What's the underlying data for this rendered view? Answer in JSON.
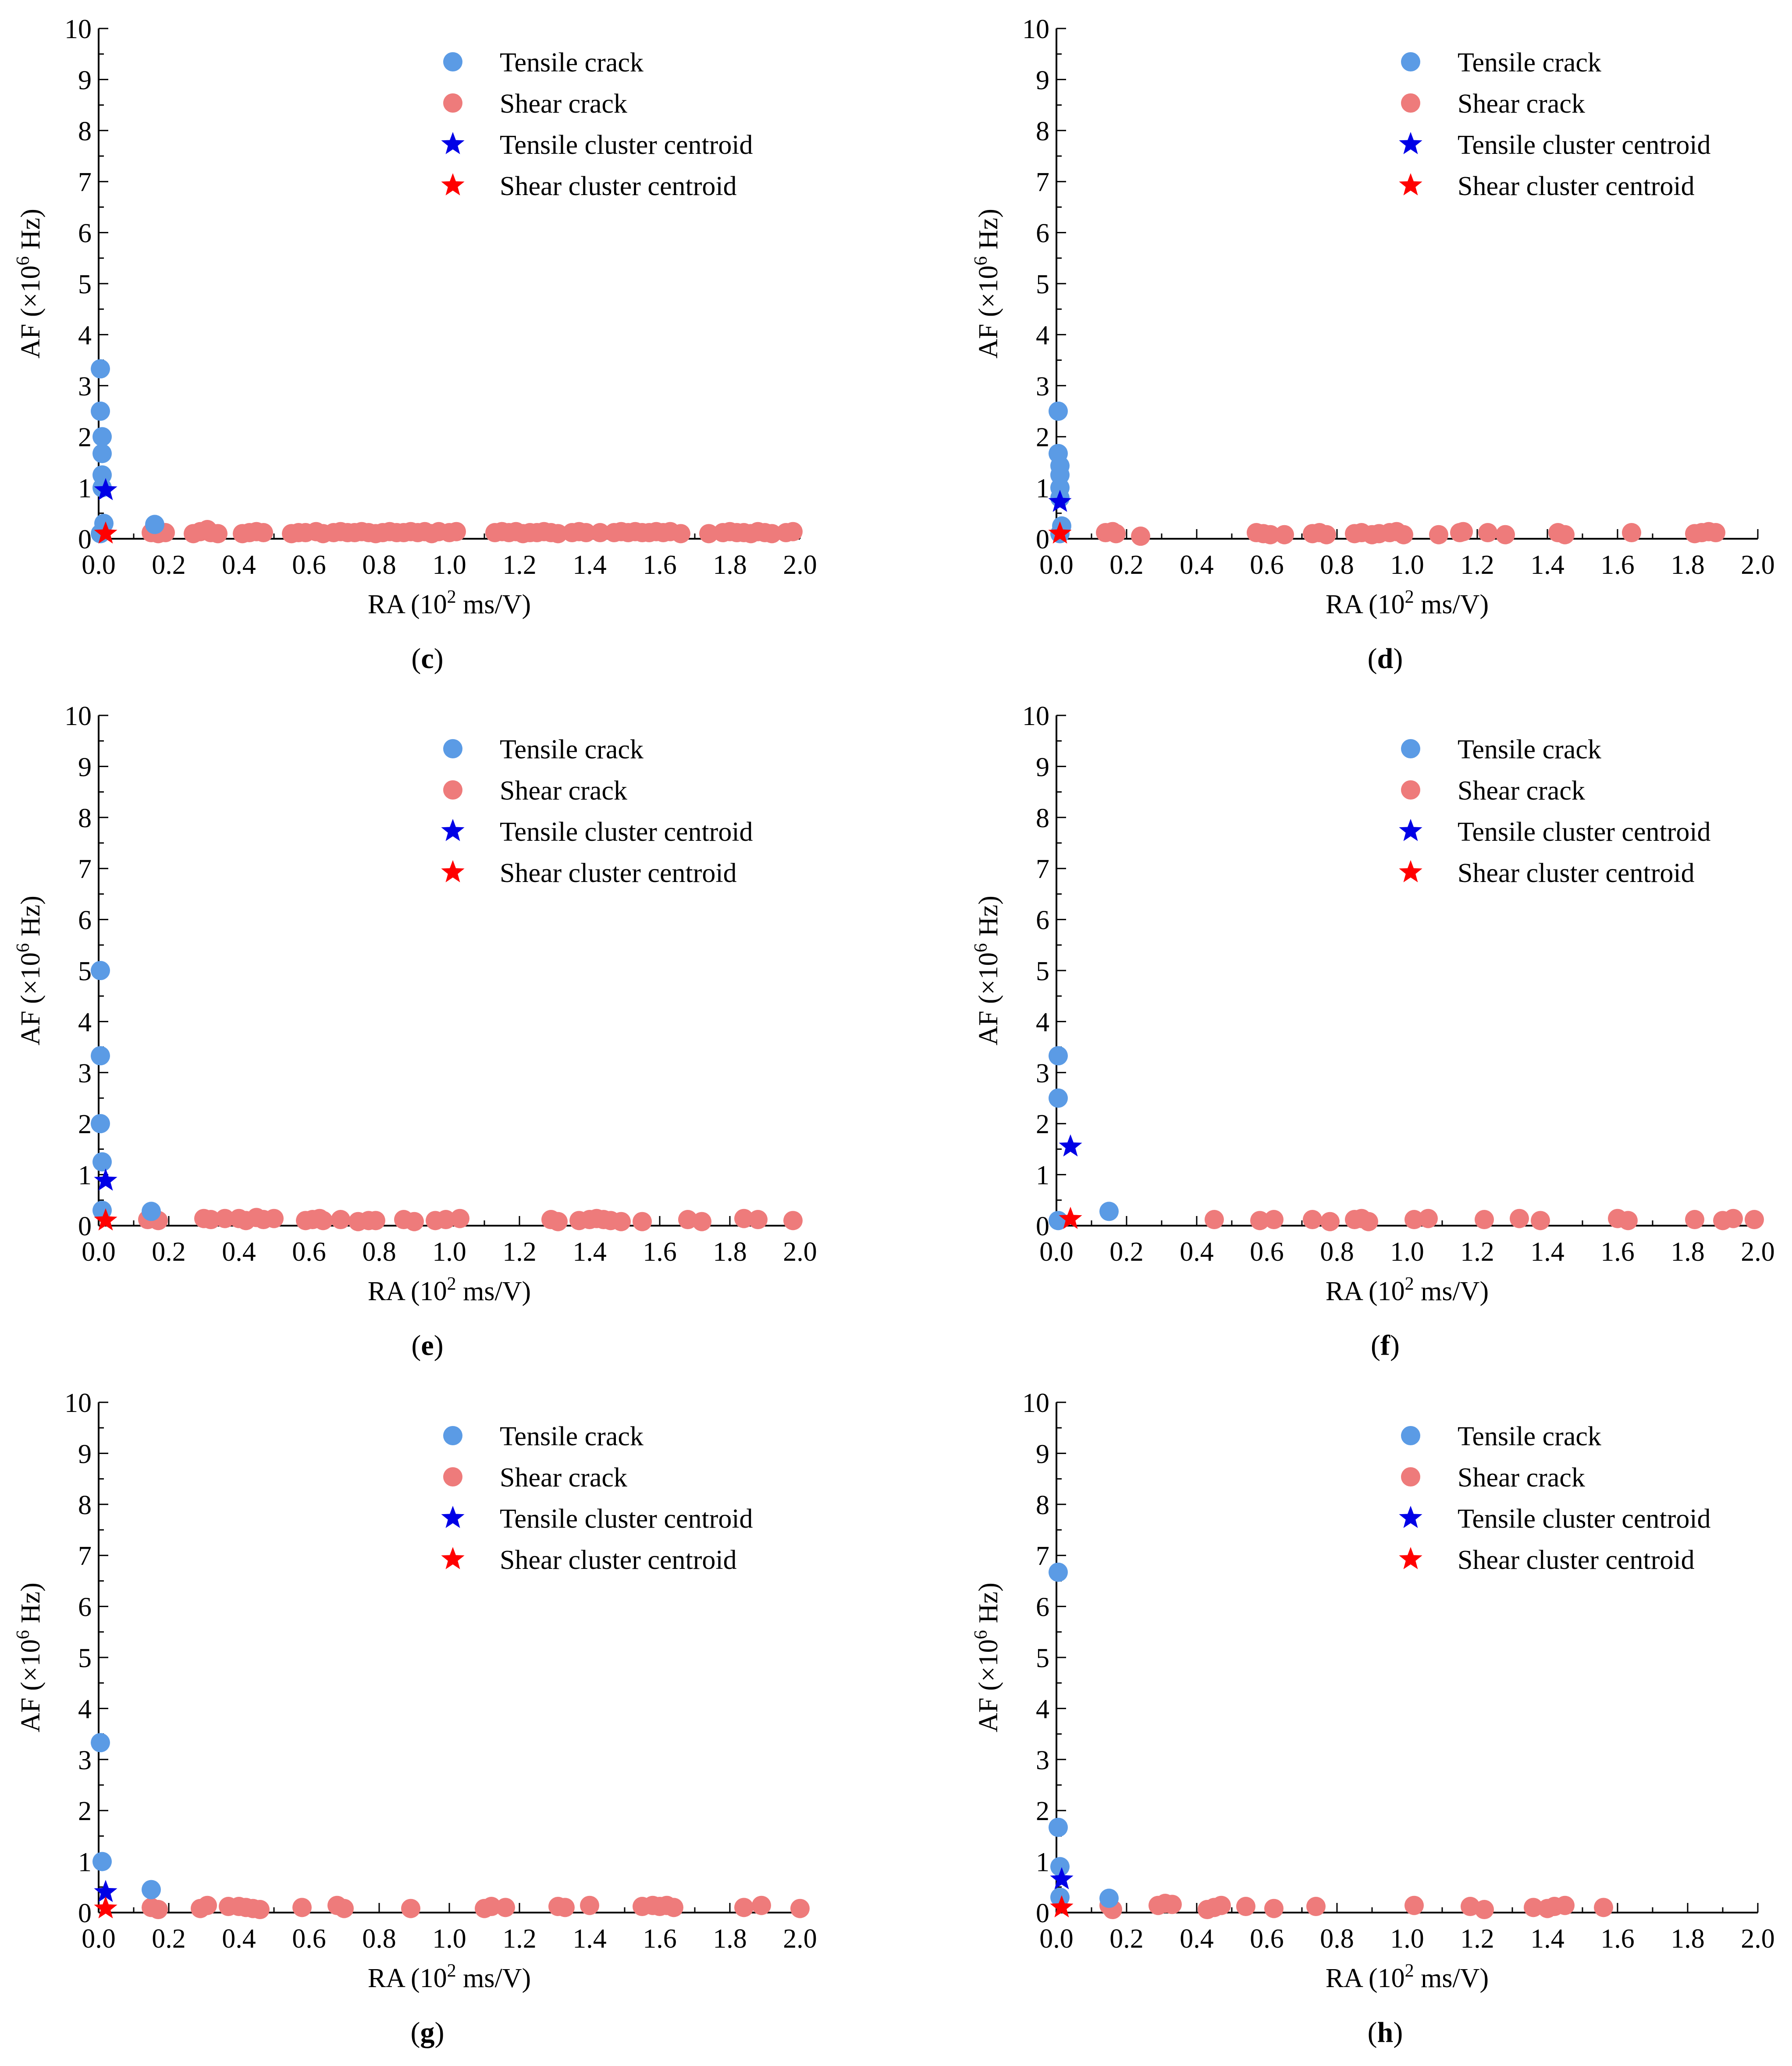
{
  "legend": {
    "tensile_crack": "Tensile crack",
    "shear_crack": "Shear crack",
    "tensile_centroid": "Tensile cluster centroid",
    "shear_centroid": "Shear cluster centroid"
  },
  "colors": {
    "tensile": "#5B9BE5",
    "shear": "#EE7B7B",
    "tensile_centroid": "#0000E6",
    "shear_centroid": "#FF0000"
  },
  "chart_data": [
    {
      "type": "scatter",
      "label": "(c)",
      "label_letter": "c",
      "xlabel": "RA (10^2 ms/V)",
      "ylabel": "AF (×10^6 Hz)",
      "xlim": [
        0,
        2.0
      ],
      "ylim": [
        0,
        10
      ],
      "xticks": [
        "0.0",
        "0.2",
        "0.4",
        "0.6",
        "0.8",
        "1.0",
        "1.2",
        "1.4",
        "1.6",
        "1.8",
        "2.0"
      ],
      "yticks": [
        "0",
        "1",
        "2",
        "3",
        "4",
        "5",
        "6",
        "7",
        "8",
        "9",
        "10"
      ],
      "legend_position": "top-right",
      "tensile": [
        [
          0.005,
          3.33
        ],
        [
          0.005,
          2.5
        ],
        [
          0.01,
          2.0
        ],
        [
          0.01,
          1.67
        ],
        [
          0.01,
          1.25
        ],
        [
          0.01,
          1.0
        ],
        [
          0.015,
          0.3
        ],
        [
          0.005,
          0.1
        ],
        [
          0.16,
          0.28
        ]
      ],
      "shear": [
        [
          0.15,
          0.12
        ],
        [
          0.17,
          0.1
        ],
        [
          0.19,
          0.12
        ],
        [
          0.27,
          0.1
        ],
        [
          0.29,
          0.14
        ],
        [
          0.31,
          0.18
        ],
        [
          0.32,
          0.12
        ],
        [
          0.34,
          0.1
        ],
        [
          0.41,
          0.1
        ],
        [
          0.43,
          0.12
        ],
        [
          0.45,
          0.14
        ],
        [
          0.47,
          0.12
        ],
        [
          0.55,
          0.1
        ],
        [
          0.57,
          0.12
        ],
        [
          0.59,
          0.12
        ],
        [
          0.62,
          0.14
        ],
        [
          0.64,
          0.1
        ],
        [
          0.67,
          0.12
        ],
        [
          0.69,
          0.14
        ],
        [
          0.71,
          0.12
        ],
        [
          0.73,
          0.12
        ],
        [
          0.75,
          0.14
        ],
        [
          0.77,
          0.12
        ],
        [
          0.79,
          0.1
        ],
        [
          0.81,
          0.12
        ],
        [
          0.83,
          0.14
        ],
        [
          0.85,
          0.12
        ],
        [
          0.87,
          0.12
        ],
        [
          0.89,
          0.14
        ],
        [
          0.91,
          0.12
        ],
        [
          0.93,
          0.14
        ],
        [
          0.95,
          0.1
        ],
        [
          0.97,
          0.14
        ],
        [
          1.0,
          0.12
        ],
        [
          1.02,
          0.14
        ],
        [
          1.13,
          0.12
        ],
        [
          1.15,
          0.14
        ],
        [
          1.17,
          0.12
        ],
        [
          1.19,
          0.14
        ],
        [
          1.21,
          0.1
        ],
        [
          1.23,
          0.12
        ],
        [
          1.25,
          0.12
        ],
        [
          1.27,
          0.14
        ],
        [
          1.29,
          0.12
        ],
        [
          1.31,
          0.1
        ],
        [
          1.35,
          0.12
        ],
        [
          1.37,
          0.14
        ],
        [
          1.39,
          0.12
        ],
        [
          1.43,
          0.12
        ],
        [
          1.47,
          0.12
        ],
        [
          1.49,
          0.14
        ],
        [
          1.51,
          0.12
        ],
        [
          1.53,
          0.14
        ],
        [
          1.55,
          0.12
        ],
        [
          1.57,
          0.12
        ],
        [
          1.59,
          0.14
        ],
        [
          1.61,
          0.12
        ],
        [
          1.63,
          0.14
        ],
        [
          1.66,
          0.1
        ],
        [
          1.74,
          0.1
        ],
        [
          1.78,
          0.12
        ],
        [
          1.8,
          0.14
        ],
        [
          1.82,
          0.12
        ],
        [
          1.84,
          0.12
        ],
        [
          1.86,
          0.1
        ],
        [
          1.88,
          0.14
        ],
        [
          1.9,
          0.12
        ],
        [
          1.92,
          0.1
        ],
        [
          1.96,
          0.12
        ],
        [
          1.98,
          0.14
        ]
      ],
      "tensile_centroid": [
        [
          0.02,
          0.95
        ]
      ],
      "shear_centroid": [
        [
          0.02,
          0.1
        ]
      ]
    },
    {
      "type": "scatter",
      "label": "(d)",
      "label_letter": "d",
      "xlabel": "RA (10^2 ms/V)",
      "ylabel": "AF (×10^6 Hz)",
      "xlim": [
        0,
        2.0
      ],
      "ylim": [
        0,
        10
      ],
      "xticks": [
        "0.0",
        "0.2",
        "0.4",
        "0.6",
        "0.8",
        "1.0",
        "1.2",
        "1.4",
        "1.6",
        "1.8",
        "2.0"
      ],
      "yticks": [
        "0",
        "1",
        "2",
        "3",
        "4",
        "5",
        "6",
        "7",
        "8",
        "9",
        "10"
      ],
      "legend_position": "top-right",
      "tensile": [
        [
          0.005,
          2.5
        ],
        [
          0.005,
          1.67
        ],
        [
          0.01,
          1.43
        ],
        [
          0.01,
          1.25
        ],
        [
          0.01,
          1.0
        ],
        [
          0.01,
          0.8
        ],
        [
          0.015,
          0.25
        ],
        [
          0.01,
          0.1
        ]
      ],
      "shear": [
        [
          0.14,
          0.12
        ],
        [
          0.16,
          0.14
        ],
        [
          0.17,
          0.1
        ],
        [
          0.24,
          0.05
        ],
        [
          0.57,
          0.12
        ],
        [
          0.59,
          0.1
        ],
        [
          0.61,
          0.08
        ],
        [
          0.65,
          0.08
        ],
        [
          0.73,
          0.1
        ],
        [
          0.75,
          0.12
        ],
        [
          0.77,
          0.08
        ],
        [
          0.85,
          0.1
        ],
        [
          0.87,
          0.12
        ],
        [
          0.9,
          0.08
        ],
        [
          0.92,
          0.1
        ],
        [
          0.95,
          0.12
        ],
        [
          0.97,
          0.14
        ],
        [
          0.99,
          0.08
        ],
        [
          1.09,
          0.08
        ],
        [
          1.15,
          0.12
        ],
        [
          1.16,
          0.14
        ],
        [
          1.23,
          0.12
        ],
        [
          1.28,
          0.08
        ],
        [
          1.43,
          0.12
        ],
        [
          1.45,
          0.08
        ],
        [
          1.64,
          0.12
        ],
        [
          1.82,
          0.1
        ],
        [
          1.84,
          0.12
        ],
        [
          1.86,
          0.14
        ],
        [
          1.88,
          0.12
        ]
      ],
      "tensile_centroid": [
        [
          0.01,
          0.72
        ]
      ],
      "shear_centroid": [
        [
          0.01,
          0.1
        ]
      ]
    },
    {
      "type": "scatter",
      "label": "(e)",
      "label_letter": "e",
      "xlabel": "RA (10^2 ms/V)",
      "ylabel": "AF (×10^6 Hz)",
      "xlim": [
        0,
        2.0
      ],
      "ylim": [
        0,
        10
      ],
      "xticks": [
        "0.0",
        "0.2",
        "0.4",
        "0.6",
        "0.8",
        "1.0",
        "1.2",
        "1.4",
        "1.6",
        "1.8",
        "2.0"
      ],
      "yticks": [
        "0",
        "1",
        "2",
        "3",
        "4",
        "5",
        "6",
        "7",
        "8",
        "9",
        "10"
      ],
      "legend_position": "top-right",
      "tensile": [
        [
          0.005,
          5.0
        ],
        [
          0.005,
          3.33
        ],
        [
          0.005,
          2.0
        ],
        [
          0.01,
          1.25
        ],
        [
          0.01,
          0.3
        ],
        [
          0.15,
          0.28
        ]
      ],
      "shear": [
        [
          0.14,
          0.12
        ],
        [
          0.16,
          0.14
        ],
        [
          0.17,
          0.1
        ],
        [
          0.3,
          0.14
        ],
        [
          0.32,
          0.12
        ],
        [
          0.36,
          0.14
        ],
        [
          0.4,
          0.14
        ],
        [
          0.42,
          0.1
        ],
        [
          0.45,
          0.16
        ],
        [
          0.47,
          0.12
        ],
        [
          0.5,
          0.14
        ],
        [
          0.59,
          0.1
        ],
        [
          0.61,
          0.12
        ],
        [
          0.63,
          0.14
        ],
        [
          0.64,
          0.1
        ],
        [
          0.69,
          0.12
        ],
        [
          0.74,
          0.08
        ],
        [
          0.77,
          0.1
        ],
        [
          0.79,
          0.1
        ],
        [
          0.87,
          0.12
        ],
        [
          0.9,
          0.08
        ],
        [
          0.96,
          0.1
        ],
        [
          0.99,
          0.12
        ],
        [
          1.03,
          0.14
        ],
        [
          1.29,
          0.12
        ],
        [
          1.31,
          0.08
        ],
        [
          1.37,
          0.1
        ],
        [
          1.4,
          0.12
        ],
        [
          1.42,
          0.14
        ],
        [
          1.44,
          0.12
        ],
        [
          1.46,
          0.1
        ],
        [
          1.49,
          0.08
        ],
        [
          1.55,
          0.08
        ],
        [
          1.68,
          0.12
        ],
        [
          1.72,
          0.08
        ],
        [
          1.84,
          0.14
        ],
        [
          1.88,
          0.12
        ],
        [
          1.98,
          0.1
        ]
      ],
      "tensile_centroid": [
        [
          0.02,
          0.88
        ]
      ],
      "shear_centroid": [
        [
          0.02,
          0.1
        ]
      ]
    },
    {
      "type": "scatter",
      "label": "(f)",
      "label_letter": "f",
      "xlabel": "RA (10^2 ms/V)",
      "ylabel": "AF (×10^6 Hz)",
      "xlim": [
        0,
        2.0
      ],
      "ylim": [
        0,
        10
      ],
      "xticks": [
        "0.0",
        "0.2",
        "0.4",
        "0.6",
        "0.8",
        "1.0",
        "1.2",
        "1.4",
        "1.6",
        "1.8",
        "2.0"
      ],
      "yticks": [
        "0",
        "1",
        "2",
        "3",
        "4",
        "5",
        "6",
        "7",
        "8",
        "9",
        "10"
      ],
      "legend_position": "top-right",
      "tensile": [
        [
          0.005,
          3.33
        ],
        [
          0.005,
          2.5
        ],
        [
          0.005,
          0.1
        ],
        [
          0.15,
          0.28
        ]
      ],
      "shear": [
        [
          0.45,
          0.12
        ],
        [
          0.58,
          0.1
        ],
        [
          0.62,
          0.12
        ],
        [
          0.73,
          0.12
        ],
        [
          0.78,
          0.08
        ],
        [
          0.85,
          0.12
        ],
        [
          0.87,
          0.14
        ],
        [
          0.89,
          0.08
        ],
        [
          1.02,
          0.12
        ],
        [
          1.06,
          0.14
        ],
        [
          1.22,
          0.12
        ],
        [
          1.32,
          0.14
        ],
        [
          1.38,
          0.1
        ],
        [
          1.6,
          0.14
        ],
        [
          1.63,
          0.1
        ],
        [
          1.82,
          0.12
        ],
        [
          1.9,
          0.1
        ],
        [
          1.93,
          0.14
        ],
        [
          1.99,
          0.12
        ]
      ],
      "tensile_centroid": [
        [
          0.04,
          1.55
        ]
      ],
      "shear_centroid": [
        [
          0.04,
          0.13
        ]
      ]
    },
    {
      "type": "scatter",
      "label": "(g)",
      "label_letter": "g",
      "xlabel": "RA (10^2 ms/V)",
      "ylabel": "AF (×10^6 Hz)",
      "xlim": [
        0,
        2.0
      ],
      "ylim": [
        0,
        10
      ],
      "xticks": [
        "0.0",
        "0.2",
        "0.4",
        "0.6",
        "0.8",
        "1.0",
        "1.2",
        "1.4",
        "1.6",
        "1.8",
        "2.0"
      ],
      "yticks": [
        "0",
        "1",
        "2",
        "3",
        "4",
        "5",
        "6",
        "7",
        "8",
        "9",
        "10"
      ],
      "legend_position": "top-right",
      "tensile": [
        [
          0.005,
          3.33
        ],
        [
          0.01,
          1.0
        ],
        [
          0.15,
          0.45
        ]
      ],
      "shear": [
        [
          0.15,
          0.1
        ],
        [
          0.17,
          0.06
        ],
        [
          0.29,
          0.08
        ],
        [
          0.31,
          0.14
        ],
        [
          0.37,
          0.12
        ],
        [
          0.4,
          0.12
        ],
        [
          0.42,
          0.1
        ],
        [
          0.44,
          0.08
        ],
        [
          0.46,
          0.06
        ],
        [
          0.58,
          0.1
        ],
        [
          0.68,
          0.14
        ],
        [
          0.7,
          0.08
        ],
        [
          0.89,
          0.08
        ],
        [
          1.1,
          0.08
        ],
        [
          1.12,
          0.12
        ],
        [
          1.16,
          0.1
        ],
        [
          1.31,
          0.12
        ],
        [
          1.33,
          0.1
        ],
        [
          1.4,
          0.14
        ],
        [
          1.55,
          0.12
        ],
        [
          1.58,
          0.14
        ],
        [
          1.6,
          0.12
        ],
        [
          1.62,
          0.14
        ],
        [
          1.64,
          0.1
        ],
        [
          1.84,
          0.1
        ],
        [
          1.89,
          0.14
        ],
        [
          2.0,
          0.08
        ]
      ],
      "tensile_centroid": [
        [
          0.02,
          0.4
        ]
      ],
      "shear_centroid": [
        [
          0.02,
          0.08
        ]
      ]
    },
    {
      "type": "scatter",
      "label": "(h)",
      "label_letter": "h",
      "xlabel": "RA (10^2 ms/V)",
      "ylabel": "AF (×10^6 Hz)",
      "xlim": [
        0,
        2.0
      ],
      "ylim": [
        0,
        10
      ],
      "xticks": [
        "0.0",
        "0.2",
        "0.4",
        "0.6",
        "0.8",
        "1.0",
        "1.2",
        "1.4",
        "1.6",
        "1.8",
        "2.0"
      ],
      "yticks": [
        "0",
        "1",
        "2",
        "3",
        "4",
        "5",
        "6",
        "7",
        "8",
        "9",
        "10"
      ],
      "legend_position": "top-right",
      "tensile": [
        [
          0.005,
          6.67
        ],
        [
          0.005,
          1.67
        ],
        [
          0.01,
          0.9
        ],
        [
          0.01,
          0.3
        ],
        [
          0.15,
          0.28
        ]
      ],
      "shear": [
        [
          0.15,
          0.14
        ],
        [
          0.16,
          0.06
        ],
        [
          0.29,
          0.14
        ],
        [
          0.31,
          0.18
        ],
        [
          0.33,
          0.16
        ],
        [
          0.43,
          0.06
        ],
        [
          0.45,
          0.1
        ],
        [
          0.47,
          0.14
        ],
        [
          0.54,
          0.12
        ],
        [
          0.62,
          0.08
        ],
        [
          0.74,
          0.12
        ],
        [
          1.02,
          0.14
        ],
        [
          1.18,
          0.12
        ],
        [
          1.22,
          0.06
        ],
        [
          1.36,
          0.1
        ],
        [
          1.4,
          0.08
        ],
        [
          1.42,
          0.12
        ],
        [
          1.45,
          0.14
        ],
        [
          1.56,
          0.1
        ]
      ],
      "tensile_centroid": [
        [
          0.015,
          0.65
        ]
      ],
      "shear_centroid": [
        [
          0.015,
          0.1
        ]
      ]
    }
  ]
}
